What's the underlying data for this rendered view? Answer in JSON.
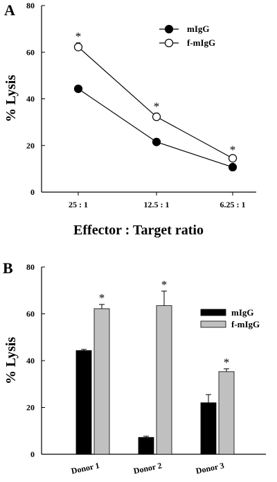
{
  "figure": {
    "panel_a_letter": "A",
    "panel_b_letter": "B"
  },
  "chart_data": [
    {
      "type": "line",
      "panel": "A",
      "x": [
        "25 : 1",
        "12.5 : 1",
        "6.25 : 1"
      ],
      "xlabel": "Effector : Target ratio",
      "ylabel": "% Lysis",
      "ylim": [
        0,
        80
      ],
      "yticks": [
        0,
        20,
        40,
        60,
        80
      ],
      "legend_position": "top-right",
      "grid": false,
      "series": [
        {
          "name": "mIgG",
          "marker": "filled-circle",
          "values": [
            44.3,
            21.5,
            10.7
          ],
          "errors": [
            0.8,
            0.8,
            0.5
          ]
        },
        {
          "name": "f-mIgG",
          "marker": "open-circle",
          "values": [
            62.2,
            32.3,
            14.5
          ],
          "errors": [
            1.8,
            1.6,
            0.8
          ]
        }
      ],
      "annotations": [
        {
          "text": "*",
          "x": "25 : 1"
        },
        {
          "text": "*",
          "x": "12.5 : 1"
        },
        {
          "text": "*",
          "x": "6.25 : 1"
        }
      ]
    },
    {
      "type": "bar",
      "panel": "B",
      "categories": [
        "Donor 1",
        "Donor 2",
        "Donor 3"
      ],
      "ylabel": "% Lysis",
      "ylim": [
        0,
        80
      ],
      "yticks": [
        0,
        20,
        40,
        60,
        80
      ],
      "legend_position": "top-right",
      "grid": false,
      "series": [
        {
          "name": "mIgG",
          "color": "#000000",
          "values": [
            44.3,
            7.2,
            22.0
          ],
          "errors": [
            0.5,
            0.5,
            3.5
          ]
        },
        {
          "name": "f-mIgG",
          "color": "#c0c0c0",
          "values": [
            62.2,
            63.5,
            35.3
          ],
          "errors": [
            1.8,
            6.2,
            1.2
          ]
        }
      ],
      "annotations": [
        {
          "text": "*",
          "category": "Donor 1"
        },
        {
          "text": "*",
          "category": "Donor 2"
        },
        {
          "text": "*",
          "category": "Donor 3"
        }
      ]
    }
  ]
}
